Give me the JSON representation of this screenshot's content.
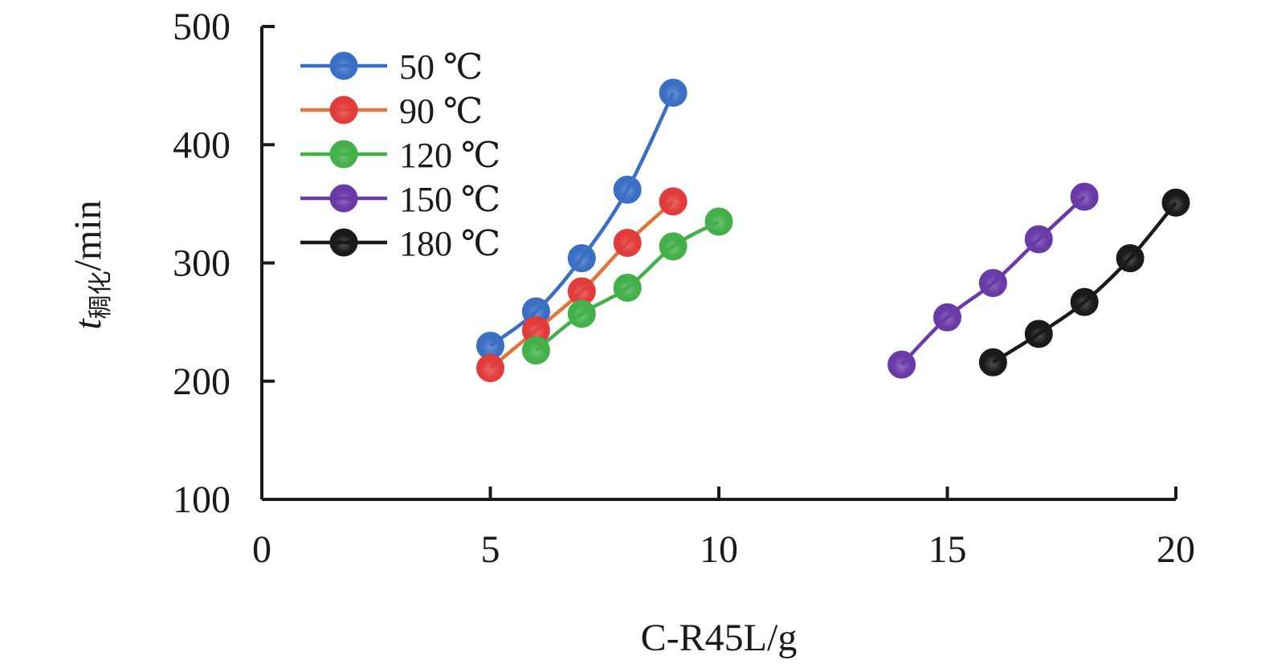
{
  "chart_data": {
    "type": "line",
    "xlabel": "C-R45L/g",
    "ylabel": {
      "italic": "t",
      "subscript": "稠化",
      "suffix": "/min"
    },
    "xlim": [
      0,
      20
    ],
    "ylim": [
      100,
      500
    ],
    "xticks": [
      0,
      5,
      10,
      15,
      20
    ],
    "yticks": [
      100,
      200,
      300,
      400,
      500
    ],
    "legend_position": "top-left",
    "grid": false,
    "series": [
      {
        "name": "50 ℃",
        "color": "#3a6fc4",
        "x": [
          5,
          6,
          7,
          8,
          9
        ],
        "y": [
          230,
          259,
          304,
          362,
          444
        ]
      },
      {
        "name": "90 ℃",
        "color": "#e23b3b",
        "line_color": "#e0753a",
        "x": [
          5,
          6,
          7,
          8,
          9
        ],
        "y": [
          211,
          243,
          276,
          317,
          352
        ]
      },
      {
        "name": "120 ℃",
        "color": "#43b04a",
        "x": [
          6,
          7,
          8,
          9,
          10
        ],
        "y": [
          226,
          257,
          279,
          314,
          335
        ]
      },
      {
        "name": "150 ℃",
        "color": "#6a3aa8",
        "x": [
          14,
          15,
          16,
          17,
          18
        ],
        "y": [
          214,
          254,
          283,
          320,
          356
        ]
      },
      {
        "name": "180 ℃",
        "color": "#1a1a1a",
        "x": [
          16,
          17,
          18,
          19,
          20
        ],
        "y": [
          216,
          240,
          267,
          304,
          351
        ]
      }
    ]
  }
}
